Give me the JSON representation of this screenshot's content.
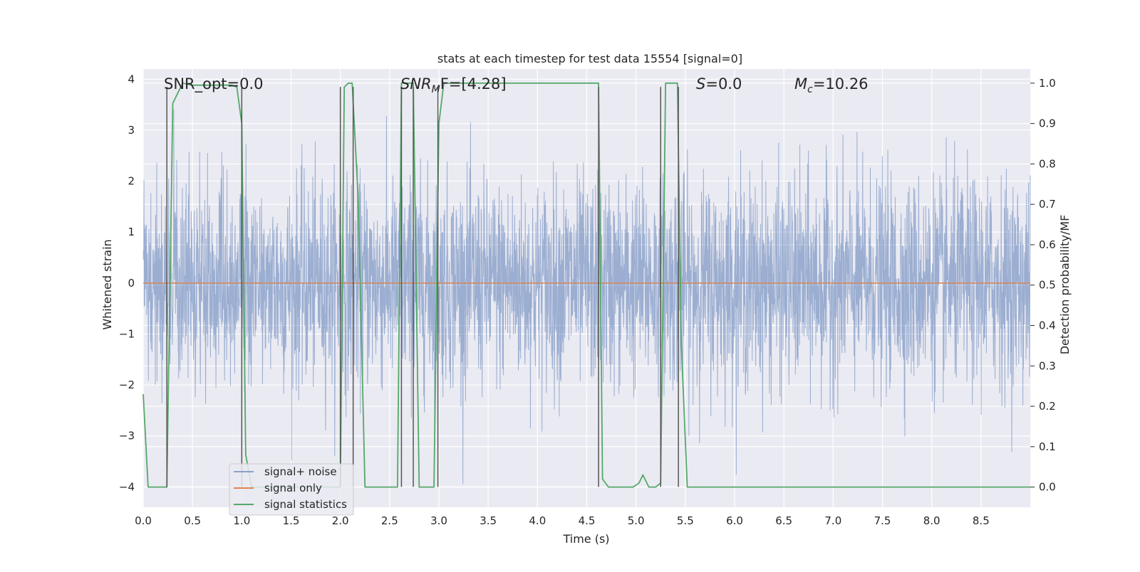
{
  "chart_data": {
    "type": "line",
    "title": "stats at each timestep for test data 15554 [signal=0]",
    "xlabel": "Time (s)",
    "ylabel": "Whitened strain",
    "y2label": "Detection probability/MF",
    "xlim": [
      0.0,
      9.0
    ],
    "ylim": [
      -4.4,
      4.2
    ],
    "y2lim": [
      -0.05,
      1.035
    ],
    "xticks": [
      "0.0",
      "0.5",
      "1.0",
      "1.5",
      "2.0",
      "2.5",
      "3.0",
      "3.5",
      "4.0",
      "4.5",
      "5.0",
      "5.5",
      "6.0",
      "6.5",
      "7.0",
      "7.5",
      "8.0",
      "8.5"
    ],
    "yticks": [
      "4",
      "3",
      "2",
      "1",
      "0",
      "−1",
      "−2",
      "−3",
      "−4"
    ],
    "y2ticks": [
      "1.0",
      "0.9",
      "0.8",
      "0.7",
      "0.6",
      "0.5",
      "0.4",
      "0.3",
      "0.2",
      "0.1",
      "0.0"
    ],
    "grid": true,
    "legend_position": "lower-left",
    "annotations": {
      "snr_opt": "SNR_opt=0.0",
      "snr_mf_base": "SNR",
      "snr_mf_sub": "M",
      "snr_mf_rest": "F=[4.28]",
      "s_italic": "S",
      "s_rest": "=0.0",
      "mc_base": "M",
      "mc_sub": "c",
      "mc_rest": "=10.26"
    },
    "series": [
      {
        "name": "signal+ noise",
        "color": "#4c72b0",
        "axis": "left",
        "description": "whitened noise, approximately gaussian with sigma 1, dense over 0-9 s",
        "sample_rate_hz": 2048
      },
      {
        "name": "signal only",
        "color": "#dd8452",
        "axis": "left",
        "x": [
          0.0,
          9.0
        ],
        "y": [
          0.0,
          0.0
        ]
      },
      {
        "name": "signal statistics",
        "color": "#55a868",
        "axis": "right",
        "x": [
          0.0,
          0.05,
          0.1,
          0.2,
          0.24,
          0.3,
          0.4,
          0.5,
          0.6,
          0.7,
          0.8,
          0.9,
          0.95,
          1.0,
          1.04,
          1.1,
          1.2,
          1.5,
          1.8,
          2.0,
          2.04,
          2.08,
          2.12,
          2.18,
          2.25,
          2.3,
          2.5,
          2.58,
          2.62,
          2.68,
          2.74,
          2.8,
          2.85,
          2.9,
          2.95,
          3.0,
          3.05,
          3.2,
          3.5,
          4.0,
          4.2,
          4.5,
          4.6,
          4.62,
          4.66,
          4.72,
          4.8,
          4.9,
          4.97,
          5.03,
          5.07,
          5.13,
          5.2,
          5.25,
          5.3,
          5.35,
          5.42,
          5.46,
          5.52,
          5.6,
          5.7,
          5.8,
          6.0,
          7.0,
          8.0,
          9.0
        ],
        "y": [
          0.23,
          0.0,
          0.0,
          0.0,
          0.0,
          0.95,
          1.0,
          0.995,
          0.995,
          0.995,
          0.995,
          0.995,
          0.99,
          0.9,
          0.08,
          0.0,
          0.0,
          0.0,
          0.0,
          0.0,
          0.99,
          1.0,
          1.0,
          0.72,
          0.0,
          0.0,
          0.0,
          0.0,
          1.0,
          1.0,
          1.0,
          0.0,
          0.0,
          0.0,
          0.0,
          0.9,
          1.0,
          1.0,
          1.0,
          1.0,
          1.0,
          1.0,
          1.0,
          1.0,
          0.02,
          0.0,
          0.0,
          0.0,
          0.0,
          0.01,
          0.03,
          0.0,
          0.0,
          0.01,
          1.0,
          1.0,
          1.0,
          0.35,
          0.0,
          0.0,
          0.0,
          0.0,
          0.0,
          0.0,
          0.0,
          0.0
        ]
      },
      {
        "name": "marker lines",
        "color": "#555555",
        "axis": "left",
        "x": [
          0.24,
          1.0,
          2.0,
          2.13,
          2.62,
          2.74,
          2.99,
          4.62,
          5.25,
          5.43
        ],
        "y_range": [
          -4.0,
          3.85
        ]
      }
    ]
  }
}
